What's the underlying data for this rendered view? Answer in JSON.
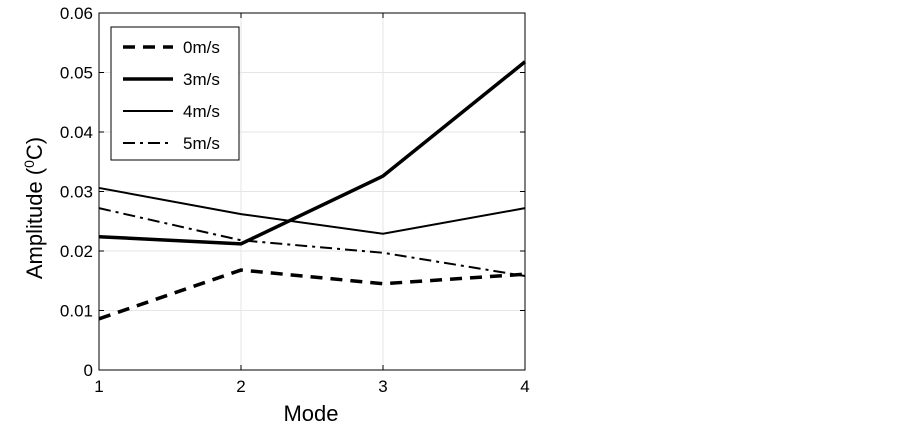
{
  "chart_data": {
    "type": "line",
    "x": [
      1,
      2,
      3,
      4
    ],
    "xticks": [
      "1",
      "2",
      "3",
      "4"
    ],
    "yticks": [
      "0",
      "0.01",
      "0.02",
      "0.03",
      "0.04",
      "0.05",
      "0.06"
    ],
    "xlim": [
      1,
      4
    ],
    "ylim": [
      0,
      0.06
    ],
    "xlabel": "Mode",
    "ylabel": {
      "prefix": "Amplitude (",
      "superscript": "0",
      "suffix": "C)"
    },
    "grid": true,
    "legend_position": "top-left",
    "series": [
      {
        "name": "0m/s",
        "style": "dashed-thick",
        "values": [
          0.0086,
          0.0168,
          0.0145,
          0.0161
        ]
      },
      {
        "name": "3m/s",
        "style": "solid-thick",
        "values": [
          0.0224,
          0.0212,
          0.0326,
          0.0518
        ]
      },
      {
        "name": "4m/s",
        "style": "solid",
        "values": [
          0.0306,
          0.0262,
          0.0229,
          0.0272
        ]
      },
      {
        "name": "5m/s",
        "style": "dashdot",
        "values": [
          0.0272,
          0.0218,
          0.0197,
          0.0158
        ]
      }
    ],
    "colors": {
      "line": "#000000",
      "grid": "#e6e6e6",
      "axis": "#000000"
    }
  }
}
